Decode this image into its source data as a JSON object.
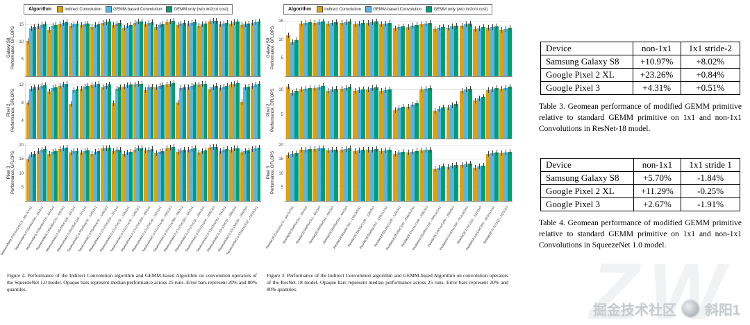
{
  "chart_data": [
    {
      "id": "figure-4-squeezenet",
      "type": "bar",
      "legend_title": "Algorithm",
      "legend_position": "top",
      "legend": [
        {
          "label": "Indirect Convolution",
          "color": "#E69F00"
        },
        {
          "label": "GEMM-based Convolution",
          "color": "#56B4E9"
        },
        {
          "label": "GEMM only (w/o im2col cost)",
          "color": "#009E73"
        }
      ],
      "categories": [
        "SqueezeNet1.0:224x224xC3→96x7x7/s2",
        "SqueezeNet1.0:55x55xC96→16x1x1",
        "SqueezeNet1.0:55x55xC16→64x1x1",
        "SqueezeNet1.0:55x55xC16→64x3x3",
        "SqueezeNet1.0:55x55xC128→16x1x1",
        "SqueezeNet1.0:55x55xC128→32x1x1",
        "SqueezeNet1.0:55x55xC32→128x1x1",
        "SqueezeNet1.0:55x55xC32→128x3x3",
        "SqueezeNet1.0:27x27xC256→32x1x1",
        "SqueezeNet1.0:27x27xC32→128x1x1",
        "SqueezeNet1.0:27x27xC32→128x3x3",
        "SqueezeNet1.0:27x27xC256→48x1x1",
        "SqueezeNet1.0:27x27xC48→192x1x1",
        "SqueezeNet1.0:27x27xC48→192x3x3",
        "SqueezeNet1.0:27x27xC384→48x1x1",
        "SqueezeNet1.0:27x27xC384→64x1x1",
        "SqueezeNet1.0:27x27xC64→256x1x1",
        "SqueezeNet1.0:27x27xC64→256x3x3",
        "SqueezeNet1.0:13x13xC512→64x1x1",
        "SqueezeNet1.0:13x13xC64→256x1x1",
        "SqueezeNet1.0:13x13xC64→256x3x3",
        "SqueezeNet1.0:13x13xC512→1000x1x1"
      ],
      "subplots": [
        {
          "device": "Galaxy S8",
          "ylabel": "Performance, GFLOPS",
          "ylim": [
            0,
            17
          ],
          "yticks": [
            5,
            10,
            15
          ],
          "series": [
            {
              "name": "Indirect Convolution",
              "color": "#E69F00",
              "values": [
                10.4,
                14.6,
                13.6,
                15.2,
                14.8,
                14.9,
                14.3,
                15.5,
                15.0,
                14.1,
                15.6,
                15.2,
                14.4,
                15.8,
                15.0,
                15.3,
                14.7,
                15.9,
                15.1,
                15.4,
                14.9,
                15.6
              ]
            },
            {
              "name": "GEMM-based Convolution",
              "color": "#56B4E9",
              "values": [
                13.9,
                15.0,
                14.8,
                15.6,
                15.1,
                15.2,
                14.9,
                15.8,
                15.3,
                14.7,
                15.9,
                15.5,
                14.9,
                16.0,
                15.3,
                15.6,
                15.1,
                16.1,
                15.4,
                15.7,
                15.2,
                15.8
              ]
            },
            {
              "name": "GEMM only (w/o im2col cost)",
              "color": "#009E73",
              "values": [
                14.3,
                15.2,
                15.0,
                15.8,
                15.3,
                15.4,
                15.1,
                15.9,
                15.5,
                14.9,
                16.0,
                15.7,
                15.1,
                16.1,
                15.5,
                15.8,
                15.3,
                16.2,
                15.6,
                15.9,
                15.4,
                16.0
              ]
            }
          ]
        },
        {
          "device": "Pixel 2",
          "ylabel": "Performance, GFLOPS",
          "ylim": [
            0,
            13
          ],
          "yticks": [
            4,
            8,
            12
          ],
          "series": [
            {
              "name": "Indirect Convolution",
              "color": "#E69F00",
              "values": [
                8.0,
                11.4,
                10.6,
                11.8,
                7.7,
                11.2,
                11.9,
                11.5,
                7.9,
                11.6,
                12.0,
                10.8,
                11.4,
                12.1,
                8.0,
                11.5,
                12.0,
                11.0,
                11.3,
                12.1,
                8.2,
                11.7
              ]
            },
            {
              "name": "GEMM-based Convolution",
              "color": "#56B4E9",
              "values": [
                11.1,
                11.7,
                11.3,
                12.0,
                10.9,
                11.6,
                12.1,
                11.8,
                11.2,
                11.9,
                12.2,
                11.4,
                11.7,
                12.3,
                11.3,
                11.8,
                12.2,
                11.5,
                11.6,
                12.3,
                11.4,
                12.0
              ]
            },
            {
              "name": "GEMM only (w/o im2col cost)",
              "color": "#009E73",
              "values": [
                11.4,
                11.9,
                11.5,
                12.2,
                11.2,
                11.8,
                12.2,
                12.0,
                11.4,
                12.1,
                12.3,
                11.6,
                11.9,
                12.4,
                11.5,
                12.0,
                12.3,
                11.7,
                11.8,
                12.4,
                11.6,
                12.2
              ]
            }
          ]
        },
        {
          "device": "Pixel 3",
          "ylabel": "Performance, GFLOPS",
          "ylim": [
            0,
            21
          ],
          "yticks": [
            5,
            10,
            15,
            20
          ],
          "series": [
            {
              "name": "Indirect Convolution",
              "color": "#E69F00",
              "values": [
                14.9,
                18.1,
                17.0,
                18.8,
                17.4,
                17.6,
                17.1,
                18.9,
                18.0,
                16.9,
                18.6,
                18.2,
                17.2,
                19.1,
                17.8,
                18.4,
                17.5,
                19.2,
                18.1,
                18.6,
                17.6,
                18.8
              ]
            },
            {
              "name": "GEMM-based Convolution",
              "color": "#56B4E9",
              "values": [
                16.7,
                18.5,
                17.8,
                19.0,
                17.9,
                18.1,
                17.7,
                19.1,
                18.4,
                17.5,
                18.9,
                18.6,
                17.8,
                19.3,
                18.2,
                18.7,
                18.0,
                19.4,
                18.5,
                18.9,
                18.1,
                19.0
              ]
            },
            {
              "name": "GEMM only (w/o im2col cost)",
              "color": "#009E73",
              "values": [
                17.1,
                18.7,
                18.0,
                19.2,
                18.1,
                18.3,
                17.9,
                19.2,
                18.6,
                17.7,
                19.0,
                18.8,
                18.0,
                19.4,
                18.4,
                18.9,
                18.2,
                19.5,
                18.7,
                19.1,
                18.3,
                19.2
              ]
            }
          ]
        }
      ],
      "caption": "Figure 4. Performance of the Indirect Convolution algorithm and GEMM-based Algorithm on convolution operators of the SqueezeNet 1.0 model. Opaque bars represent median performance across 25 runs. Error bars represent 20% and 80% quantiles."
    },
    {
      "id": "figure-3-resnet18",
      "type": "bar",
      "legend_title": "Algorithm",
      "legend_position": "top",
      "legend": [
        {
          "label": "Indirect Convolution",
          "color": "#E69F00"
        },
        {
          "label": "GEMM-based Convolution",
          "color": "#56B4E9"
        },
        {
          "label": "GEMM only (w/o im2col cost)",
          "color": "#009E73"
        }
      ],
      "categories": [
        "ResNet18:224x224xC3→64x7x7/s2",
        "ResNet18:56x56xC64→64x3x3",
        "ResNet18:56x56xC64→64x3x3",
        "ResNet18:56x56xC64→64x3x3",
        "ResNet18:56x56xC64→64x3x3",
        "ResNet18:56x56xC64→128x3x3/s2",
        "ResNet18:28x28xC128→128x3x3",
        "ResNet18:56x56xC64→128x1x1/s2",
        "ResNet18:28x28xC128→128x3x3",
        "ResNet18:28x28xC128→256x3x3/s2",
        "ResNet18:14x14xC256→256x3x3",
        "ResNet18:28x28xC128→256x1x1/s2",
        "ResNet18:14x14xC256→256x3x3",
        "ResNet18:14x14xC256→512x3x3/s2",
        "ResNet18:7x7xC512→512x3x3",
        "ResNet18:14x14xC256→512x1x1/s2",
        "ResNet18:7x7xC512→512x3x3"
      ],
      "subplots": [
        {
          "device": "Galaxy S8",
          "ylabel": "Performance, GFLOPS",
          "ylim": [
            0,
            16
          ],
          "yticks": [
            5,
            10,
            15
          ],
          "series": [
            {
              "name": "Indirect Convolution",
              "color": "#E69F00",
              "values": [
                11.2,
                14.5,
                14.7,
                14.4,
                14.6,
                14.3,
                14.6,
                14.2,
                13.2,
                13.6,
                14.3,
                13.0,
                13.4,
                14.0,
                12.9,
                13.3,
                12.7
              ]
            },
            {
              "name": "GEMM-based Convolution",
              "color": "#56B4E9",
              "values": [
                9.3,
                14.7,
                14.9,
                14.6,
                14.8,
                14.5,
                14.8,
                14.4,
                13.5,
                13.9,
                14.5,
                13.3,
                13.7,
                14.2,
                13.2,
                13.6,
                13.0
              ]
            },
            {
              "name": "GEMM only (w/o im2col cost)",
              "color": "#009E73",
              "values": [
                9.9,
                14.9,
                15.1,
                14.8,
                15.0,
                14.7,
                15.0,
                14.6,
                13.8,
                14.1,
                14.7,
                13.6,
                13.9,
                14.4,
                13.5,
                13.8,
                13.3
              ]
            }
          ]
        },
        {
          "device": "Pixel 2",
          "ylabel": "Performance, GFLOPS",
          "ylim": [
            0,
            12
          ],
          "yticks": [
            5,
            10
          ],
          "series": [
            {
              "name": "Indirect Convolution",
              "color": "#E69F00",
              "values": [
                10.7,
                10.1,
                10.4,
                9.9,
                10.3,
                9.8,
                10.2,
                9.8,
                5.9,
                6.6,
                10.1,
                5.7,
                6.4,
                9.9,
                7.9,
                10.0,
                10.3
              ]
            },
            {
              "name": "GEMM-based Convolution",
              "color": "#56B4E9",
              "values": [
                9.5,
                10.3,
                10.6,
                10.1,
                10.5,
                10.0,
                10.4,
                10.0,
                6.3,
                7.0,
                10.3,
                6.1,
                6.8,
                10.1,
                8.3,
                10.2,
                10.5
              ]
            },
            {
              "name": "GEMM only (w/o im2col cost)",
              "color": "#009E73",
              "values": [
                9.9,
                10.5,
                10.8,
                10.3,
                10.7,
                10.2,
                10.6,
                10.2,
                6.6,
                7.3,
                10.5,
                6.4,
                7.1,
                10.3,
                8.6,
                10.4,
                10.7
              ]
            }
          ]
        },
        {
          "device": "Pixel 3",
          "ylabel": "Performance, GFLOPS",
          "ylim": [
            0,
            21
          ],
          "yticks": [
            5,
            10,
            15,
            20
          ],
          "series": [
            {
              "name": "Indirect Convolution",
              "color": "#E69F00",
              "values": [
                16.4,
                18.4,
                18.7,
                18.2,
                18.5,
                18.1,
                18.4,
                18.0,
                17.1,
                17.5,
                18.2,
                11.6,
                12.3,
                12.9,
                12.1,
                17.0,
                17.3
              ]
            },
            {
              "name": "GEMM-based Convolution",
              "color": "#56B4E9",
              "values": [
                16.9,
                18.6,
                18.9,
                18.4,
                18.7,
                18.3,
                18.6,
                18.2,
                17.4,
                17.8,
                18.4,
                12.1,
                12.7,
                13.2,
                12.5,
                17.3,
                17.6
              ]
            },
            {
              "name": "GEMM only (w/o im2col cost)",
              "color": "#009E73",
              "values": [
                17.2,
                18.8,
                19.1,
                18.6,
                18.9,
                18.5,
                18.8,
                18.4,
                17.7,
                18.0,
                18.6,
                12.4,
                13.0,
                13.5,
                12.8,
                17.6,
                17.8
              ]
            }
          ]
        }
      ],
      "caption": "Figure 3. Performance of the Indirect Convolution algorithm and GEMM-based Algorithm on convolution operators of the ResNet-18 model. Opaque bars represent median performance across 25 runs. Error bars represent 20% and 80% quantiles."
    }
  ],
  "tables": [
    {
      "id": "table-3",
      "headers": [
        "Device",
        "non-1x1",
        "1x1 stride-2"
      ],
      "rows": [
        [
          "Samsung Galaxy S8",
          "+10.97%",
          "+8.02%"
        ],
        [
          "Google Pixel 2 XL",
          "+23.26%",
          "+0.84%"
        ],
        [
          "Google Pixel 3",
          "+4.31%",
          "+0.51%"
        ]
      ],
      "caption": "Table 3. Geomean performance of modified GEMM primitive relative to standard GEMM primitive on 1x1 and non-1x1 Convolutions in ResNet-18 model."
    },
    {
      "id": "table-4",
      "headers": [
        "Device",
        "non-1x1",
        "1x1 stride 1"
      ],
      "rows": [
        [
          "Samsung Galaxy S8",
          "+5.70%",
          "-1.84%"
        ],
        [
          "Google Pixel 2 XL",
          "+11.29%",
          "-0.25%"
        ],
        [
          "Google Pixel 3",
          "+2.67%",
          "-1.91%"
        ]
      ],
      "caption": "Table 4. Geomean performance of modified GEMM primitive relative to standard GEMM primitive on 1x1 and non-1x1 Convolutions in SqueezeNet 1.0 model."
    }
  ],
  "watermark": {
    "community": "掘金技术社区",
    "author": "斜阳1",
    "glyphs": "ZW"
  }
}
